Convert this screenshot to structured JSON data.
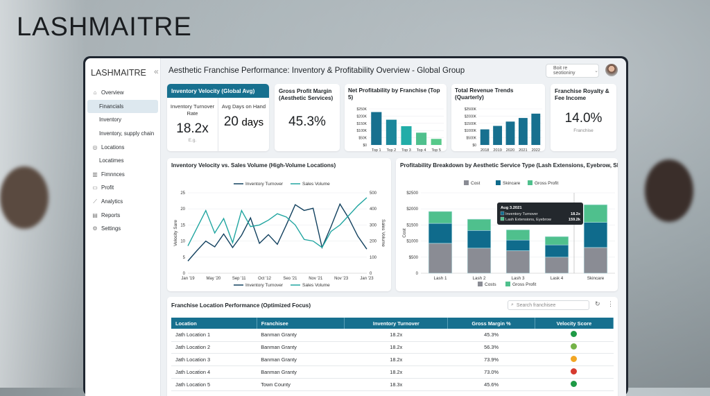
{
  "brand": {
    "light": "LASH",
    "bold": "MAITRE"
  },
  "sidebar": {
    "logo": "LASHMAITRE",
    "collapse_icon": "«",
    "items": [
      {
        "label": "Overview",
        "icon": "home-icon",
        "sub": false
      },
      {
        "label": "Financials",
        "sub": true,
        "active": true
      },
      {
        "label": "Inventory",
        "sub": true
      },
      {
        "label": "Inventory, supply chain",
        "sub": true
      },
      {
        "label": "Locations",
        "icon": "pin-icon",
        "sub": false
      },
      {
        "label": "Locatimes",
        "sub": true
      },
      {
        "label": "Fimnnces",
        "icon": "bar-chart-icon",
        "sub": false
      },
      {
        "label": "Profit",
        "icon": "profit-icon",
        "sub": false
      },
      {
        "label": "Analytics",
        "icon": "analytics-icon",
        "sub": false
      },
      {
        "label": "Reports",
        "icon": "reports-icon",
        "sub": false
      },
      {
        "label": "Settings",
        "icon": "gear-icon",
        "sub": false
      }
    ]
  },
  "header": {
    "title": "Aesthetic Franchise Performance: Inventory & Profitability Overview - Global Group",
    "select": "Boit re seotioniny"
  },
  "kpi": {
    "velocity": {
      "title": "Inventory Velocity (Global Avg)",
      "turnover_label": "Inventory Turnover Rate",
      "turnover_value": "18.2x",
      "turnover_note": "E.g.",
      "days_label": "Avg Days on Hand",
      "days_value": "20",
      "days_unit": "days"
    },
    "margin": {
      "title": "Gross Profit Margin (Aesthetic Services)",
      "value": "45.3%"
    },
    "royalty": {
      "title": "Franchise Royalty & Fee Income",
      "value": "14.0%",
      "note": "Franchise"
    }
  },
  "colors": {
    "accent": "#17708f",
    "teal": "#1ea5a0",
    "green": "#4fc08d",
    "cost": "#8a8c94",
    "skincare": "#0f6b8c",
    "dark_line": "#11405e",
    "sales_line": "#20a5a0"
  },
  "chart_data": [
    {
      "type": "bar",
      "title": "Net Profitability by Franchise (Top 5)",
      "categories": [
        "Top 1",
        "Top 2",
        "Top 3",
        "Top 4",
        "Top 5"
      ],
      "values": [
        228,
        175,
        130,
        85,
        42
      ],
      "yticks": [
        "$0",
        "$50K",
        "$100K",
        "$150K",
        "$200K",
        "$250K"
      ],
      "ylim": [
        0,
        250
      ],
      "unit": "K"
    },
    {
      "type": "bar",
      "title": "Total Revenue Trends (Quarterly)",
      "categories": [
        "2018",
        "2019",
        "2020",
        "2021",
        "2022"
      ],
      "values": [
        1080,
        1320,
        1620,
        1870,
        2170
      ],
      "yticks": [
        "$0",
        "$500K",
        "$1000K",
        "$1500K",
        "$2000K",
        "$2500K"
      ],
      "ylim": [
        0,
        2500
      ]
    },
    {
      "type": "line",
      "title": "Inventory Velocity vs. Sales Volume (High-Volume Locations)",
      "ylabel": "Velocity Sare",
      "y2label": "Sales Volume",
      "ylim": [
        0,
        25
      ],
      "y2lim": [
        0,
        500
      ],
      "yticks": [
        "0",
        "5",
        "10",
        "15",
        "20",
        "25"
      ],
      "y2ticks": [
        "0",
        "100",
        "200",
        "300",
        "400",
        "500"
      ],
      "xticks": [
        "Jan '19",
        "May '20",
        "Sep '11",
        "Oct '12",
        "Seo '21",
        "Nov '21",
        "Nov '23",
        "Jan '23"
      ],
      "series": [
        {
          "name": "Inventory Turnover",
          "axis": "left",
          "values": [
            3.8,
            7,
            10,
            8.2,
            12.2,
            8,
            11.8,
            17.2,
            9.3,
            12,
            9,
            15,
            21.3,
            19.5,
            20.2,
            8,
            14.5,
            21.5,
            17,
            11.5,
            7.5
          ]
        },
        {
          "name": "Sales Volume",
          "axis": "right",
          "values": [
            170,
            280,
            390,
            250,
            340,
            190,
            390,
            290,
            300,
            330,
            370,
            350,
            300,
            210,
            200,
            160,
            260,
            300,
            360,
            420,
            470
          ]
        }
      ],
      "legend": "top and bottom"
    },
    {
      "type": "bar",
      "stacked": true,
      "title": "Profitability Breakdown by Aesthetic Service Type (Lash Extensions, Eyebrow, Skincare",
      "ylabel": "Cost",
      "ylim": [
        0,
        2500
      ],
      "yticks": [
        "0",
        "$500",
        "$1000",
        "$1500",
        "$2000",
        "$2500"
      ],
      "categories": [
        "Lash 1",
        "Lash 2",
        "Lash 3",
        "Lask 4",
        "Skincare"
      ],
      "series": [
        {
          "name": "Cost",
          "values": [
            930,
            780,
            700,
            500,
            800
          ]
        },
        {
          "name": "Skincare",
          "values": [
            620,
            550,
            330,
            380,
            780
          ]
        },
        {
          "name": "Gross Profit",
          "values": [
            370,
            350,
            320,
            260,
            550
          ]
        }
      ],
      "bottom_legend": [
        "Costs",
        "Gross Profit"
      ],
      "tooltip": {
        "title": "Aug 3.2021",
        "rows": [
          {
            "label": "Inventory Turnover",
            "value": "18.2x"
          },
          {
            "label": "Lash Extensions, Eyebrow",
            "value": "159.2k"
          }
        ]
      }
    }
  ],
  "table": {
    "title": "Franchise Location Performance (Optimized Focus)",
    "search_placeholder": "Search franchisee",
    "columns": [
      "Location",
      "Franchisee",
      "Inventory Turnover",
      "Gross Margin %",
      "Velocity Score"
    ],
    "rows": [
      [
        "Jath Location 1",
        "Banman Granty",
        "18.2x",
        "45.3%",
        "#1e9a45"
      ],
      [
        "Jath Location 2",
        "Banman Granty",
        "18.2x",
        "56.3%",
        "#74b347"
      ],
      [
        "Jath Location 3",
        "Banman Granty",
        "18.2x",
        "73.9%",
        "#f2a623"
      ],
      [
        "Jath Location 4",
        "Banman Granty",
        "18.2x",
        "73.0%",
        "#d63a2f"
      ],
      [
        "Jath Location 5",
        "Town County",
        "18.3x",
        "45.6%",
        "#1e9a45"
      ]
    ]
  }
}
